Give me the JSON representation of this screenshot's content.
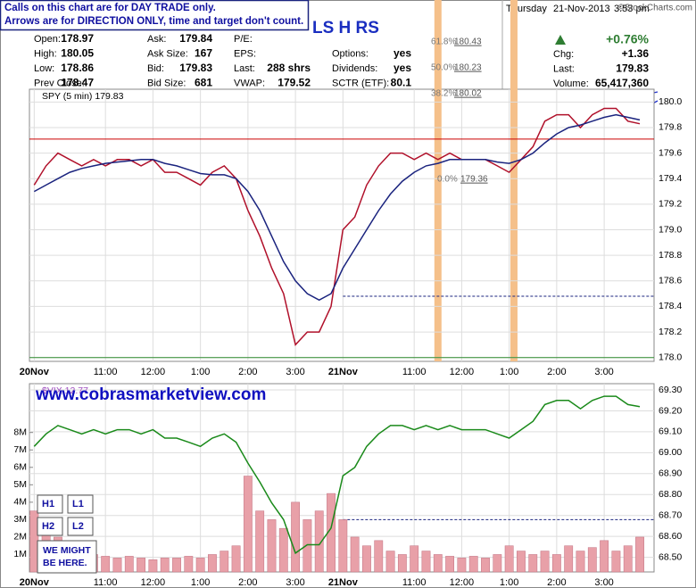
{
  "notice": [
    "Calls on this chart are for DAY TRADE only.",
    "Arrows are for DIRECTION ONLY, time and target don't count."
  ],
  "title": "LS H RS",
  "quote": {
    "rows": [
      [
        [
          "Open:",
          "178.97"
        ],
        [
          "Ask:",
          "179.84"
        ],
        [
          "P/E:"
        ],
        null
      ],
      [
        [
          "High:",
          "180.05"
        ],
        [
          "Ask Size:",
          "167"
        ],
        [
          "EPS:"
        ],
        [
          "Options:",
          "yes"
        ]
      ],
      [
        [
          "Low:",
          "178.86"
        ],
        [
          "Bid:",
          "179.83"
        ],
        [
          "Last:",
          "288 shrs"
        ],
        [
          "Dividends:",
          "yes"
        ]
      ],
      [
        [
          "Prev Close:",
          "178.47"
        ],
        [
          "Bid Size:",
          "681"
        ],
        [
          "VWAP:",
          "179.52"
        ],
        [
          "SCTR (ETF):",
          "80.1"
        ]
      ]
    ]
  },
  "summary": {
    "day": "Thursday",
    "date": "21-Nov-2013",
    "time": "3:53 pm",
    "change_pct": "+0.76%",
    "rows": [
      [
        "Chg:",
        "+1.36"
      ],
      [
        "Last:",
        "179.83"
      ],
      [
        "Volume:",
        "65,417,360"
      ]
    ]
  },
  "credit": "©StockCharts.com",
  "watermark": "www.cobrasmarketview.com",
  "boxes": [
    "H1",
    "L1",
    "H2",
    "L2"
  ],
  "callout": [
    "WE MIGHT",
    "BE HERE."
  ],
  "chart_data": [
    {
      "type": "line",
      "label": "SPY (5 min) 179.83",
      "x": [
        0,
        0.25,
        0.5,
        0.75,
        1,
        1.25,
        1.5,
        1.75,
        2,
        2.25,
        2.5,
        2.75,
        3,
        3.25,
        3.5,
        3.75,
        4,
        4.25,
        4.5,
        4.75,
        5,
        5.25,
        5.5,
        5.75,
        6,
        6.25,
        6.5,
        6.75,
        7,
        7.25,
        7.5,
        7.75,
        8,
        8.25,
        8.5,
        8.75,
        9,
        9.25,
        9.5,
        9.75,
        10,
        10.25,
        10.5,
        10.75,
        11,
        11.25,
        11.5,
        11.75,
        12,
        12.25,
        12.5,
        12.75
      ],
      "series": [
        {
          "color": "#b0102a",
          "values": [
            179.35,
            179.5,
            179.6,
            179.55,
            179.5,
            179.55,
            179.5,
            179.55,
            179.55,
            179.5,
            179.55,
            179.45,
            179.45,
            179.4,
            179.35,
            179.45,
            179.5,
            179.4,
            179.15,
            178.95,
            178.7,
            178.5,
            178.1,
            178.2,
            178.2,
            178.4,
            179.0,
            179.1,
            179.35,
            179.5,
            179.6,
            179.6,
            179.55,
            179.6,
            179.55,
            179.6,
            179.55,
            179.55,
            179.55,
            179.5,
            179.45,
            179.55,
            179.65,
            179.85,
            179.9,
            179.9,
            179.8,
            179.9,
            179.95,
            179.95,
            179.85,
            179.83
          ]
        },
        {
          "color": "#1a237e",
          "values": [
            179.3,
            179.35,
            179.4,
            179.45,
            179.48,
            179.5,
            179.52,
            179.53,
            179.54,
            179.55,
            179.55,
            179.52,
            179.5,
            179.47,
            179.44,
            179.43,
            179.43,
            179.4,
            179.3,
            179.15,
            178.95,
            178.75,
            178.6,
            178.5,
            178.45,
            178.5,
            178.7,
            178.85,
            179.0,
            179.15,
            179.28,
            179.38,
            179.45,
            179.5,
            179.52,
            179.55,
            179.55,
            179.55,
            179.55,
            179.53,
            179.52,
            179.55,
            179.6,
            179.68,
            179.75,
            179.8,
            179.82,
            179.85,
            179.88,
            179.9,
            179.88,
            179.86
          ]
        }
      ],
      "xlim": [
        -0.1,
        13.05
      ],
      "xticks": [
        {
          "value": 0,
          "label": "20Nov"
        },
        {
          "value": 1.5,
          "label": "11:00"
        },
        {
          "value": 2.5,
          "label": "12:00"
        },
        {
          "value": 3.5,
          "label": "1:00"
        },
        {
          "value": 4.5,
          "label": "2:00"
        },
        {
          "value": 5.5,
          "label": "3:00"
        },
        {
          "value": 6.5,
          "label": "21Nov"
        },
        {
          "value": 8,
          "label": "11:00"
        },
        {
          "value": 9,
          "label": "12:00"
        },
        {
          "value": 10,
          "label": "1:00"
        },
        {
          "value": 11,
          "label": "2:00"
        },
        {
          "value": 12,
          "label": "3:00"
        }
      ],
      "ylim": [
        177.97,
        180.1
      ],
      "yticks": [
        {
          "value": 180,
          "label": "180.0"
        },
        179.8,
        179.6,
        179.4,
        179.2,
        {
          "value": 179,
          "label": "179.0"
        },
        178.8,
        178.6,
        178.4,
        178.2,
        {
          "value": 178,
          "label": "178.0"
        }
      ],
      "hlines": [
        {
          "value": 179.71,
          "color": "#cc0000"
        },
        {
          "value": 178.0,
          "color": "#2e8b2e"
        },
        {
          "value": 178.48,
          "color": "#1a237e",
          "dashed": true,
          "from": 6.5
        }
      ],
      "bands": [
        {
          "value": 8.5,
          "color": "#f5c08a"
        },
        {
          "value": 10.1,
          "color": "#f5c08a"
        }
      ],
      "fib": [
        {
          "label": "61.8%",
          "value": 180.43
        },
        {
          "label": "50.0%",
          "value": 180.23
        },
        {
          "label": "38.2%",
          "value": 180.02
        },
        {
          "label": "0.0%",
          "value": 179.36
        }
      ],
      "grid": true
    },
    {
      "type": "bar",
      "label": "$VIX 12.77",
      "x": [
        0,
        0.25,
        0.5,
        0.75,
        1,
        1.25,
        1.5,
        1.75,
        2,
        2.25,
        2.5,
        2.75,
        3,
        3.25,
        3.5,
        3.75,
        4,
        4.25,
        4.5,
        4.75,
        5,
        5.25,
        5.5,
        5.75,
        6,
        6.25,
        6.5,
        6.75,
        7,
        7.25,
        7.5,
        7.75,
        8,
        8.25,
        8.5,
        8.75,
        9,
        9.25,
        9.5,
        9.75,
        10,
        10.25,
        10.5,
        10.75,
        11,
        11.25,
        11.5,
        11.75,
        12,
        12.25,
        12.5,
        12.75
      ],
      "series": [
        {
          "type": "bar",
          "color": "#e8a0a8",
          "values": [
            3.5,
            2.5,
            2,
            1.5,
            1.2,
            1.0,
            0.9,
            0.8,
            0.9,
            0.8,
            0.7,
            0.8,
            0.8,
            0.9,
            0.8,
            1.0,
            1.2,
            1.5,
            5.5,
            3.5,
            3.0,
            2.5,
            4.0,
            3.0,
            3.5,
            4.5,
            3.0,
            2.0,
            1.5,
            1.8,
            1.2,
            1.0,
            1.5,
            1.2,
            1.0,
            0.9,
            0.8,
            0.9,
            0.8,
            1.0,
            1.5,
            1.2,
            1.0,
            1.2,
            1.0,
            1.5,
            1.2,
            1.4,
            1.8,
            1.2,
            1.5,
            2.0
          ]
        },
        {
          "type": "line",
          "axis": "y2",
          "color": "#1a8a1a",
          "values": [
            69.03,
            69.09,
            69.13,
            69.11,
            69.09,
            69.11,
            69.09,
            69.11,
            69.11,
            69.09,
            69.11,
            69.07,
            69.07,
            69.05,
            69.03,
            69.07,
            69.09,
            69.05,
            68.95,
            68.86,
            68.76,
            68.68,
            68.52,
            68.56,
            68.56,
            68.64,
            68.89,
            68.93,
            69.03,
            69.09,
            69.13,
            69.13,
            69.11,
            69.13,
            69.11,
            69.13,
            69.11,
            69.11,
            69.11,
            69.09,
            69.07,
            69.11,
            69.15,
            69.23,
            69.25,
            69.25,
            69.21,
            69.25,
            69.27,
            69.27,
            69.23,
            69.22
          ]
        }
      ],
      "xlim": [
        -0.1,
        13.05
      ],
      "xticks": [
        {
          "value": 0,
          "label": "20Nov"
        },
        {
          "value": 1.5,
          "label": "11:00"
        },
        {
          "value": 2.5,
          "label": "12:00"
        },
        {
          "value": 3.5,
          "label": "1:00"
        },
        {
          "value": 4.5,
          "label": "2:00"
        },
        {
          "value": 5.5,
          "label": "3:00"
        },
        {
          "value": 6.5,
          "label": "21Nov"
        },
        {
          "value": 8,
          "label": "11:00"
        },
        {
          "value": 9,
          "label": "12:00"
        },
        {
          "value": 10,
          "label": "1:00"
        },
        {
          "value": 11,
          "label": "2:00"
        },
        {
          "value": 12,
          "label": "3:00"
        }
      ],
      "ylim": [
        0,
        10.8
      ],
      "yticks": [
        {
          "value": 1,
          "label": "1M"
        },
        {
          "value": 2,
          "label": "2M"
        },
        {
          "value": 3,
          "label": "3M"
        },
        {
          "value": 4,
          "label": "4M"
        },
        {
          "value": 5,
          "label": "5M"
        },
        {
          "value": 6,
          "label": "6M"
        },
        {
          "value": 7,
          "label": "7M"
        },
        {
          "value": 8,
          "label": "8M"
        }
      ],
      "y2lim": [
        68.43,
        69.33
      ],
      "y2ticks": [
        {
          "value": 69.3,
          "label": "69.30"
        },
        {
          "value": 69.2,
          "label": "69.20"
        },
        {
          "value": 69.1,
          "label": "69.10"
        },
        {
          "value": 69,
          "label": "69.00"
        },
        {
          "value": 68.9,
          "label": "68.90"
        },
        {
          "value": 68.8,
          "label": "68.80"
        },
        {
          "value": 68.7,
          "label": "68.70"
        },
        {
          "value": 68.6,
          "label": "68.60"
        },
        {
          "value": 68.5,
          "label": "68.50"
        }
      ],
      "hlines": [
        {
          "value": 68.68,
          "axis": "y2",
          "color": "#1a237e",
          "dashed": true,
          "from": 6.5
        }
      ],
      "grid": true
    }
  ]
}
